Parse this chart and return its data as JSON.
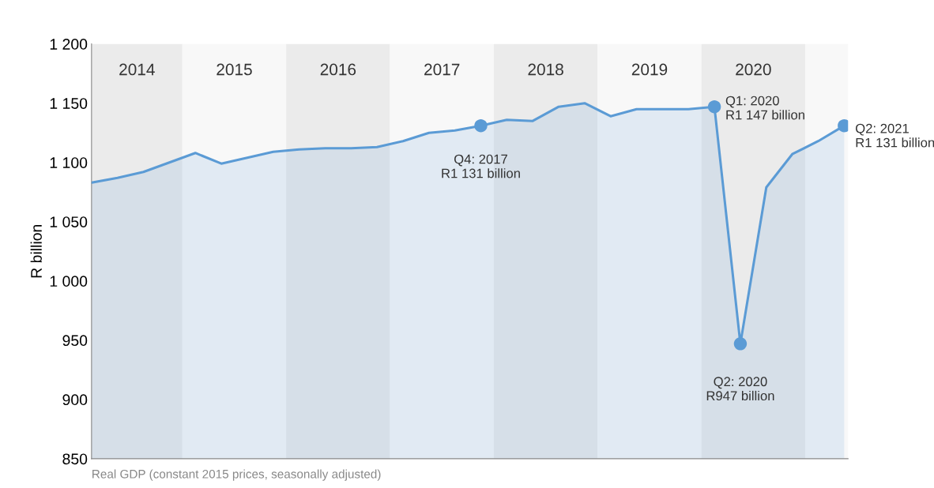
{
  "chart_data": {
    "type": "area",
    "ylabel": "R billion",
    "categories": [
      null,
      null,
      null,
      null,
      null,
      null,
      null,
      null,
      null,
      null,
      null,
      null,
      null,
      null,
      null,
      null,
      null,
      null,
      null,
      null,
      null,
      null,
      null,
      null,
      null,
      null,
      null,
      null,
      null,
      null
    ],
    "series": [
      {
        "color": "#5b9bd5",
        "values": [
          1083,
          1087,
          1092,
          1100,
          1108,
          1099,
          1104,
          1109,
          1111,
          1112,
          1112,
          1113,
          1118,
          1125,
          1127,
          1131,
          1136,
          1135,
          1147,
          1150,
          1139,
          1145,
          1145,
          1145,
          1147,
          947,
          1079,
          1107,
          1118,
          1131
        ]
      },
      {
        "type": "scatter",
        "color": "#5b9bd5",
        "marker": "circle",
        "values": [
          null,
          null,
          null,
          null,
          null,
          null,
          null,
          null,
          null,
          null,
          null,
          null,
          null,
          null,
          null,
          1131,
          null,
          null,
          null,
          null,
          null,
          null,
          null,
          null,
          1147,
          947,
          null,
          null,
          null,
          1131
        ]
      }
    ],
    "ylim": [
      850,
      1200
    ],
    "yticks": [
      {
        "value": 850,
        "label": "850"
      },
      {
        "value": 900,
        "label": "900"
      },
      {
        "value": 950,
        "label": "950"
      },
      {
        "value": 1000,
        "label": "1 000"
      },
      {
        "value": 1050,
        "label": "1 050"
      },
      {
        "value": 1100,
        "label": "1 100"
      },
      {
        "value": 1150,
        "label": "1 150"
      },
      {
        "value": 1200,
        "label": "1 200"
      }
    ],
    "tick_labels": "y",
    "grid": false,
    "line_style": "solid",
    "annotations": [
      "Q4: 2017\nR1 131 billion",
      "Q1: 2020\nR1 147 billion",
      "Q2: 2020\nR947 billion",
      "Q2: 2021\nR1 131 billion",
      "2014",
      "2015",
      "2016",
      "2017",
      "2018",
      "2019",
      "2020",
      "Real GDP (constant 2015 prices, seasonally adjusted)"
    ]
  }
}
